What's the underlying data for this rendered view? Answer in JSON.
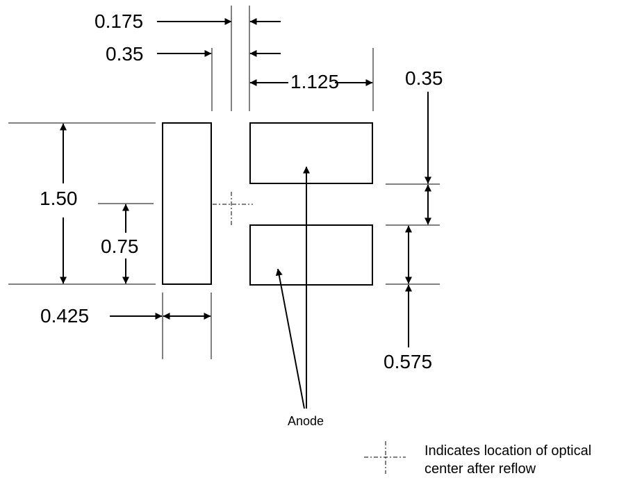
{
  "dimensions": {
    "gap_half": "0.175",
    "gap": "0.35",
    "anode_pad_length": "1.125",
    "anode_gap": "0.35",
    "overall_height": "1.50",
    "half_height": "0.75",
    "cathode_pad_width": "0.425",
    "anode_pad_height": "0.575"
  },
  "labels": {
    "anode": "Anode"
  },
  "legend": {
    "line1": "Indicates location of optical",
    "line2": "center after reflow"
  }
}
